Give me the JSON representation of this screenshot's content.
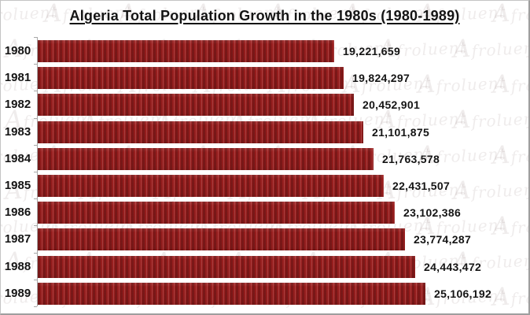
{
  "header": {
    "title": "Algeria Total Population Growth in the 1980s (1980-1989)"
  },
  "watermark": {
    "text": "Afroluent"
  },
  "chart_data": {
    "type": "bar",
    "orientation": "horizontal",
    "title": "Algeria Total Population Growth in the 1980s (1980-1989)",
    "categories": [
      "1980",
      "1981",
      "1982",
      "1983",
      "1984",
      "1985",
      "1986",
      "1987",
      "1988",
      "1989"
    ],
    "values": [
      19221659,
      19824297,
      20452901,
      21101875,
      21763578,
      22431507,
      23102386,
      23774287,
      24443472,
      25106192
    ],
    "value_labels": [
      "19,221,659",
      "19,824,297",
      "20,452,901",
      "21,101,875",
      "21,763,578",
      "22,431,507",
      "23,102,386",
      "23,774,287",
      "24,443,472",
      "25,106,192"
    ],
    "xlabel": "",
    "ylabel": "",
    "xlim": [
      0,
      25106192
    ],
    "grid": false,
    "legend": false,
    "colors": {
      "bar": "#9e1f1f",
      "bar_stripe": "#871616",
      "text": "#141414",
      "axis": "#a8a8a8"
    }
  }
}
